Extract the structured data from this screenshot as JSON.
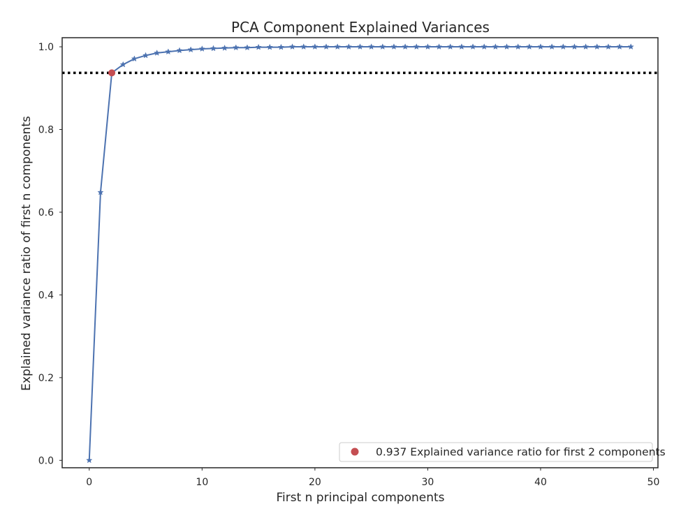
{
  "chart_data": {
    "type": "line",
    "title": "PCA Component Explained Variances",
    "xlabel": "First n principal components",
    "ylabel": "Explained variance ratio of first n components",
    "xlim": [
      -2.4,
      50.4
    ],
    "ylim": [
      -0.018,
      1.022
    ],
    "xticks": [
      0,
      10,
      20,
      30,
      40,
      50
    ],
    "xtick_labels": [
      "0",
      "10",
      "20",
      "30",
      "40",
      "50"
    ],
    "yticks": [
      0.0,
      0.2,
      0.4,
      0.6,
      0.8,
      1.0
    ],
    "ytick_labels": [
      "0.0",
      "0.2",
      "0.4",
      "0.6",
      "0.8",
      "1.0"
    ],
    "grid": false,
    "series": [
      {
        "marker": "star",
        "color": "#4c72b0",
        "x": [
          0,
          1,
          2,
          3,
          4,
          5,
          6,
          7,
          8,
          9,
          10,
          11,
          12,
          13,
          14,
          15,
          16,
          17,
          18,
          19,
          20,
          21,
          22,
          23,
          24,
          25,
          26,
          27,
          28,
          29,
          30,
          31,
          32,
          33,
          34,
          35,
          36,
          37,
          38,
          39,
          40,
          41,
          42,
          43,
          44,
          45,
          46,
          47,
          48
        ],
        "y": [
          0.0,
          0.648,
          0.937,
          0.957,
          0.971,
          0.979,
          0.985,
          0.988,
          0.991,
          0.993,
          0.995,
          0.996,
          0.997,
          0.998,
          0.998,
          0.999,
          0.999,
          0.999,
          1.0,
          1.0,
          1.0,
          1.0,
          1.0,
          1.0,
          1.0,
          1.0,
          1.0,
          1.0,
          1.0,
          1.0,
          1.0,
          1.0,
          1.0,
          1.0,
          1.0,
          1.0,
          1.0,
          1.0,
          1.0,
          1.0,
          1.0,
          1.0,
          1.0,
          1.0,
          1.0,
          1.0,
          1.0,
          1.0,
          1.0
        ]
      }
    ],
    "highlight_point": {
      "x": 2,
      "y": 0.937,
      "color": "#c44e52"
    },
    "threshold_line": {
      "y": 0.937,
      "style": "dotted",
      "color": "#000000"
    },
    "legend": {
      "position": "lower-right",
      "entries": [
        {
          "label": "0.937 Explained variance ratio for first 2 components",
          "color": "#c44e52",
          "marker": "circle"
        }
      ]
    }
  }
}
